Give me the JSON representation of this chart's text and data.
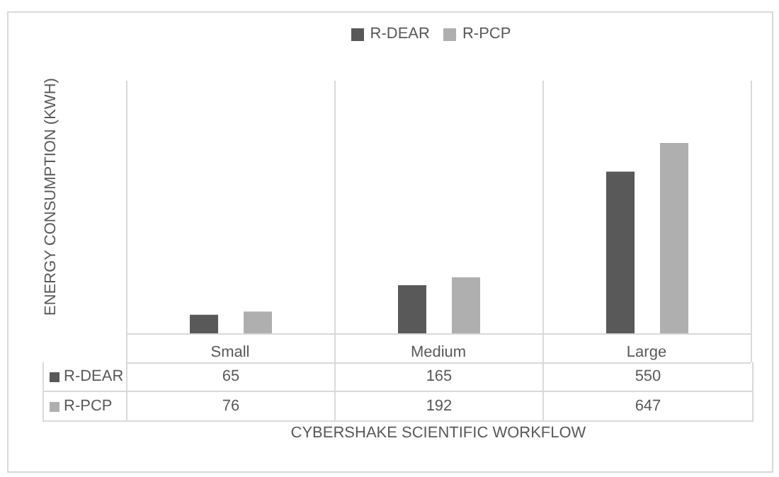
{
  "chart_data": {
    "type": "bar",
    "xlabel": "CYBERSHAKE SCIENTIFIC WORKFLOW",
    "ylabel": "ENERGY CONSUMPTION (KWH)",
    "categories": [
      "Small",
      "Medium",
      "Large"
    ],
    "series": [
      {
        "name": "R-DEAR",
        "color": "#595959",
        "values": [
          65,
          165,
          550
        ]
      },
      {
        "name": "R-PCP",
        "color": "#afafaf",
        "values": [
          76,
          192,
          647
        ]
      }
    ],
    "tick_labels": "x",
    "data_labels": true,
    "legend": "top",
    "grid": false
  }
}
